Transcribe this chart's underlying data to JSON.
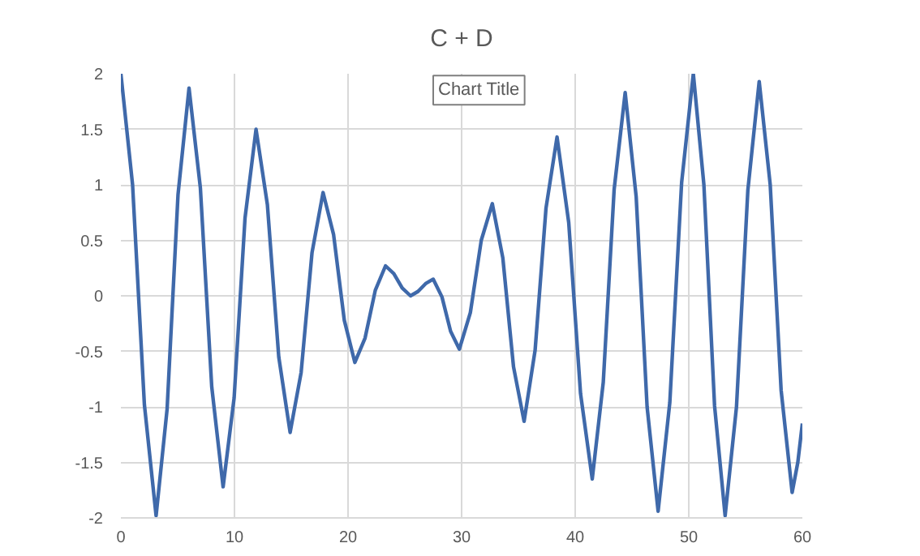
{
  "chart_data": {
    "type": "line",
    "title": "C + D",
    "annotations": [
      "Chart Title"
    ],
    "x": [
      0,
      1.03,
      2.07,
      3.1,
      4.07,
      5.03,
      6.0,
      7.0,
      8.0,
      9.0,
      9.97,
      10.93,
      11.9,
      12.9,
      13.9,
      14.9,
      15.87,
      16.83,
      17.8,
      18.73,
      19.67,
      20.6,
      21.5,
      22.4,
      23.3,
      24.03,
      24.77,
      25.5,
      26.17,
      26.83,
      27.5,
      28.27,
      29.03,
      29.8,
      30.77,
      31.73,
      32.7,
      33.63,
      34.57,
      35.5,
      36.47,
      37.43,
      38.4,
      39.43,
      40.47,
      41.5,
      42.47,
      43.43,
      44.4,
      45.37,
      46.33,
      47.3,
      48.33,
      49.37,
      50.4,
      51.33,
      52.27,
      53.2,
      54.2,
      55.2,
      56.2,
      57.17,
      58.13,
      59.1,
      59.6,
      60
    ],
    "series": [
      {
        "color": "#3f69aa",
        "values": [
          2,
          1.0,
          -0.98,
          -1.98,
          -1.02,
          0.91,
          1.87,
          0.97,
          -0.82,
          -1.72,
          -0.92,
          0.7,
          1.5,
          0.82,
          -0.55,
          -1.23,
          -0.69,
          0.39,
          0.93,
          0.55,
          -0.22,
          -0.6,
          -0.38,
          0.05,
          0.27,
          0.2,
          0.07,
          0,
          0.04,
          0.11,
          0.15,
          -0.01,
          -0.32,
          -0.48,
          -0.15,
          0.5,
          0.83,
          0.34,
          -0.64,
          -1.13,
          -0.49,
          0.79,
          1.43,
          0.66,
          -0.88,
          -1.65,
          -0.78,
          0.96,
          1.83,
          0.89,
          -1.0,
          -1.94,
          -0.96,
          1.02,
          2.0,
          1.0,
          -0.99,
          -1.98,
          -1.0,
          0.95,
          1.93,
          1.0,
          -0.85,
          -1.77,
          -1.5,
          -1.15
        ]
      }
    ],
    "xlim": [
      0,
      60
    ],
    "xticks": [
      0,
      10,
      20,
      30,
      40,
      50,
      60
    ],
    "ylim": [
      -2,
      2
    ],
    "yticks": [
      -2,
      -1.5,
      -1,
      -0.5,
      0,
      0.5,
      1,
      1.5,
      2
    ],
    "grid": true,
    "marker": "none",
    "line_style": "solid"
  }
}
